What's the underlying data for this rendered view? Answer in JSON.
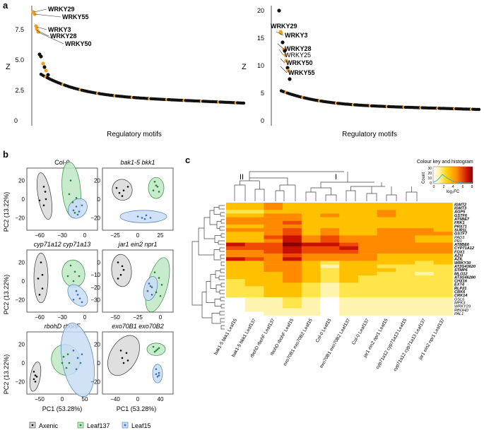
{
  "panel_a": {
    "letter": "a",
    "left": {
      "y_label": "Z",
      "x_label": "Regulatory motifs",
      "y_ticks": [
        "0",
        "2.5",
        "5.0",
        "7.5"
      ],
      "annotations": [
        "WRKY29",
        "WRKY55",
        "WRKY3",
        "WRKY28",
        "WRKY50"
      ]
    },
    "right": {
      "y_label": "Z",
      "x_label": "Regulatory motifs",
      "y_ticks": [
        "0",
        "5",
        "10",
        "15",
        "20"
      ],
      "annotations": [
        "WRKY29",
        "WRKY3",
        "WRKY28",
        "WRKY25",
        "WRKY50",
        "WRKY55"
      ]
    }
  },
  "panel_b": {
    "letter": "b",
    "y_label": "PC2 (13.22%)",
    "x_label": "PC1 (53.28%)",
    "plots": [
      {
        "title": "Col-0",
        "italic": false,
        "y_ticks": [
          "20",
          "0",
          "−20"
        ],
        "x_ticks": [
          "−60",
          "−30",
          "0"
        ]
      },
      {
        "title": "bak1-5 bkk1",
        "italic": true,
        "y_ticks": [
          "20",
          "0",
          "−20"
        ],
        "x_ticks": [
          "−25",
          "0",
          "25"
        ]
      },
      {
        "title": "cyp71a12 cyp71a13",
        "italic": true,
        "y_ticks": [
          "20",
          "0",
          "−20"
        ],
        "x_ticks": [
          "−60",
          "−30",
          "0"
        ]
      },
      {
        "title": "jar1 ein2 npr1",
        "italic": true,
        "y_ticks": [
          "0",
          "−10",
          "−20",
          "−30"
        ],
        "x_ticks": [
          "−50",
          "−25",
          "0"
        ]
      },
      {
        "title": "rbohD rbohF",
        "italic": true,
        "y_ticks": [
          "20",
          "0",
          "−20"
        ],
        "x_ticks": [
          "−50",
          "0",
          "50"
        ]
      },
      {
        "title": "exo70B1 exo70B2",
        "italic": true,
        "y_ticks": [
          "20",
          "0",
          "−20"
        ],
        "x_ticks": [
          "−40",
          "0",
          "40"
        ]
      }
    ],
    "legend": [
      "Axenic",
      "Leaf137",
      "Leaf15"
    ],
    "colors": {
      "axenic": "#d9d9d9",
      "leaf137": "#bfe8c4",
      "leaf15": "#c9dcf5"
    }
  },
  "panel_c": {
    "letter": "c",
    "key_title": "Colour key and histogram",
    "key_ylabel": "Count",
    "key_yticks": [
      "0",
      "10",
      "20",
      "30"
    ],
    "key_xticks": [
      "0",
      "2",
      "4",
      "6",
      "8"
    ],
    "key_xlabel": "log₂FC",
    "cluster_labels": [
      "II",
      "I"
    ],
    "genes": [
      {
        "name": "IGMT2",
        "bold": true
      },
      {
        "name": "IGMT3",
        "bold": true
      },
      {
        "name": "AGP5",
        "bold": true
      },
      {
        "name": "GSTF6",
        "bold": true
      },
      {
        "name": "AT5BE7",
        "bold": true
      },
      {
        "name": "FRK1",
        "bold": true
      },
      {
        "name": "PRX71",
        "bold": true
      },
      {
        "name": "SUR1L",
        "bold": true
      },
      {
        "name": "GSTF7",
        "bold": true
      },
      {
        "name": "PAD3",
        "bold": false
      },
      {
        "name": "PR1",
        "bold": false
      },
      {
        "name": "AT8BE6",
        "bold": true
      },
      {
        "name": "CYP71A12",
        "bold": true
      },
      {
        "name": "FOX1",
        "bold": true
      },
      {
        "name": "AZI3",
        "bold": true
      },
      {
        "name": "AZIL",
        "bold": true
      },
      {
        "name": "WRKY30",
        "bold": true
      },
      {
        "name": "AT2G43620",
        "bold": true
      },
      {
        "name": "STMP6",
        "bold": true
      },
      {
        "name": "MLO12",
        "bold": true
      },
      {
        "name": "AT3G46280",
        "bold": true
      },
      {
        "name": "CHX16",
        "bold": true
      },
      {
        "name": "EXT4",
        "bold": true
      },
      {
        "name": "RLP21",
        "bold": true
      },
      {
        "name": "CRK6",
        "bold": true
      },
      {
        "name": "CRK14",
        "bold": true
      },
      {
        "name": "GSL6",
        "bold": false
      },
      {
        "name": "MPK3",
        "bold": false
      },
      {
        "name": "WRKY29",
        "bold": false
      },
      {
        "name": "RBOHD",
        "bold": false
      },
      {
        "name": "PAL1",
        "bold": false
      }
    ],
    "columns": [
      "bak1-5 bkk1 Leaf15",
      "bak1-5 bkk1 Leaf137",
      "rbohD rbohF Leaf137",
      "rbohD rbohF Leaf15",
      "exo70B1 exo70B2 Leaf15",
      "Col-0 Leaf15",
      "exo70B1 exo70B2 Leaf137",
      "Col-0 Leaf137",
      "jar1 ein2 npr1 Leaf15",
      "cyp71a12 cyp71a13 Leaf15",
      "cyp71a12 cyp71a13 Leaf137",
      "jar1 ein2 npr1 Leaf137"
    ],
    "palette": [
      "#ffffff",
      "#fff3b0",
      "#ffe44a",
      "#ffc000",
      "#ff8a00",
      "#f04a00",
      "#c81200",
      "#8a0000"
    ],
    "values": [
      [
        3,
        3,
        4,
        3,
        3,
        3,
        3,
        3,
        3,
        3,
        3,
        3
      ],
      [
        3,
        3,
        4,
        3,
        3,
        3,
        3,
        3,
        3,
        3,
        3,
        3
      ],
      [
        2,
        2,
        3,
        3,
        3,
        3,
        3,
        3,
        4,
        3,
        3,
        3
      ],
      [
        3,
        3,
        4,
        4,
        3,
        4,
        3,
        3,
        4,
        3,
        3,
        3
      ],
      [
        4,
        4,
        4,
        4,
        3,
        3,
        3,
        3,
        3,
        3,
        3,
        3
      ],
      [
        4,
        4,
        4,
        5,
        3,
        3,
        3,
        3,
        3,
        3,
        3,
        3
      ],
      [
        3,
        3,
        4,
        4,
        3,
        3,
        3,
        3,
        3,
        3,
        3,
        3
      ],
      [
        4,
        4,
        4,
        5,
        3,
        4,
        3,
        3,
        4,
        4,
        4,
        3
      ],
      [
        3,
        3,
        4,
        5,
        3,
        4,
        3,
        3,
        4,
        4,
        4,
        4
      ],
      [
        3,
        3,
        5,
        6,
        4,
        5,
        4,
        4,
        4,
        4,
        3,
        3
      ],
      [
        3,
        3,
        4,
        6,
        4,
        5,
        4,
        4,
        4,
        4,
        3,
        3
      ],
      [
        6,
        5,
        5,
        7,
        6,
        6,
        5,
        4,
        4,
        4,
        4,
        4
      ],
      [
        5,
        5,
        5,
        6,
        5,
        5,
        6,
        4,
        4,
        4,
        4,
        4
      ],
      [
        4,
        4,
        5,
        6,
        5,
        5,
        5,
        4,
        4,
        4,
        4,
        4
      ],
      [
        4,
        4,
        4,
        5,
        4,
        4,
        4,
        4,
        3,
        3,
        3,
        3
      ],
      [
        6,
        5,
        4,
        6,
        4,
        4,
        4,
        4,
        3,
        3,
        3,
        3
      ],
      [
        3,
        3,
        4,
        4,
        3,
        2,
        3,
        3,
        3,
        3,
        2,
        3
      ],
      [
        3,
        3,
        4,
        4,
        3,
        1,
        3,
        3,
        2,
        2,
        2,
        2
      ],
      [
        3,
        3,
        4,
        4,
        3,
        2,
        3,
        3,
        3,
        2,
        2,
        2
      ],
      [
        3,
        3,
        3,
        4,
        3,
        2,
        3,
        3,
        2,
        2,
        1,
        2
      ],
      [
        3,
        3,
        3,
        4,
        3,
        2,
        3,
        2,
        2,
        2,
        2,
        2
      ],
      [
        2,
        3,
        3,
        4,
        3,
        2,
        3,
        2,
        2,
        2,
        2,
        2
      ],
      [
        2,
        3,
        3,
        3,
        2,
        1,
        2,
        2,
        2,
        2,
        2,
        2
      ],
      [
        2,
        2,
        3,
        3,
        2,
        1,
        2,
        2,
        2,
        2,
        2,
        2
      ],
      [
        2,
        2,
        3,
        3,
        2,
        1,
        2,
        2,
        2,
        2,
        2,
        2
      ],
      [
        2,
        2,
        3,
        3,
        2,
        1,
        2,
        2,
        2,
        2,
        2,
        2
      ],
      [
        0,
        1,
        1,
        2,
        1,
        0,
        1,
        1,
        1,
        1,
        1,
        1
      ],
      [
        0,
        1,
        1,
        2,
        1,
        0,
        1,
        1,
        1,
        1,
        1,
        1
      ],
      [
        0,
        1,
        1,
        2,
        1,
        0,
        1,
        1,
        1,
        1,
        1,
        1
      ],
      [
        0,
        1,
        1,
        1,
        1,
        0,
        1,
        1,
        1,
        1,
        1,
        1
      ],
      [
        0,
        0,
        1,
        1,
        1,
        0,
        1,
        1,
        1,
        1,
        1,
        1
      ]
    ]
  }
}
